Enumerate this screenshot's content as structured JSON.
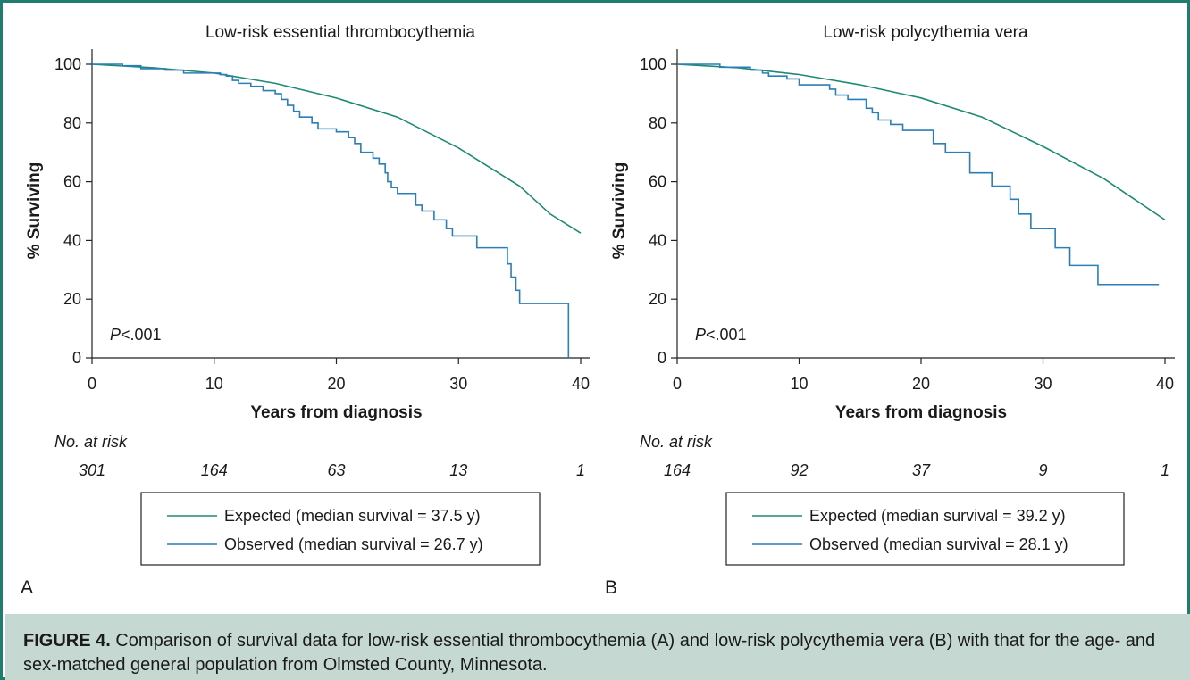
{
  "figure_label": "FIGURE 4.",
  "caption": "Comparison of survival data for low-risk essential thrombocythemia (A) and low-risk polycythemia vera (B) with that for the age- and sex-matched general population from Olmsted County, Minnesota.",
  "colors": {
    "expected": "#1e8a73",
    "observed": "#2a7fb8",
    "border": "#1e7d6c",
    "caption_bg": "#c6d8d2"
  },
  "chart_data": [
    {
      "type": "line",
      "panel": "A",
      "title": "Low-risk essential thrombocythemia",
      "xlabel": "Years from diagnosis",
      "ylabel": "% Surviving",
      "xlim": [
        0,
        40
      ],
      "ylim": [
        0,
        100
      ],
      "xticks": [
        0,
        10,
        20,
        30,
        40
      ],
      "yticks": [
        0,
        20,
        40,
        60,
        80,
        100
      ],
      "annotation_italic": "P",
      "annotation_rest": "<.001",
      "risk_label": "No. at risk",
      "risk_values": [
        "301",
        "164",
        "63",
        "13",
        "1"
      ],
      "series": [
        {
          "name": "Expected (median survival = 37.5 y)",
          "step": false,
          "points": [
            [
              0,
              100
            ],
            [
              5,
              98.8
            ],
            [
              10,
              97
            ],
            [
              15,
              93.5
            ],
            [
              20,
              88.5
            ],
            [
              25,
              82
            ],
            [
              30,
              71.5
            ],
            [
              35,
              58.5
            ],
            [
              37.5,
              49
            ],
            [
              40,
              42.5
            ]
          ]
        },
        {
          "name": "Observed (median survival = 26.7 y)",
          "step": true,
          "points": [
            [
              0,
              100
            ],
            [
              2.5,
              99.5
            ],
            [
              4,
              98.5
            ],
            [
              6,
              98
            ],
            [
              7.5,
              97
            ],
            [
              10.5,
              96.5
            ],
            [
              11,
              96
            ],
            [
              11.5,
              94.5
            ],
            [
              12,
              93.5
            ],
            [
              13,
              92.5
            ],
            [
              14,
              91
            ],
            [
              15,
              90
            ],
            [
              15.5,
              88
            ],
            [
              16,
              86
            ],
            [
              16.5,
              84
            ],
            [
              17,
              82
            ],
            [
              18,
              80
            ],
            [
              18.5,
              78
            ],
            [
              20,
              77
            ],
            [
              21,
              75
            ],
            [
              21.5,
              73
            ],
            [
              22,
              70
            ],
            [
              23,
              68
            ],
            [
              23.5,
              66
            ],
            [
              24,
              63
            ],
            [
              24.2,
              60
            ],
            [
              24.5,
              58
            ],
            [
              25,
              56
            ],
            [
              26.5,
              52
            ],
            [
              27,
              50
            ],
            [
              28,
              47
            ],
            [
              29,
              44
            ],
            [
              29.5,
              41.5
            ],
            [
              31.5,
              37.5
            ],
            [
              34,
              32
            ],
            [
              34.3,
              27.5
            ],
            [
              34.7,
              23
            ],
            [
              35,
              18.5
            ],
            [
              39,
              0
            ]
          ]
        }
      ]
    },
    {
      "type": "line",
      "panel": "B",
      "title": "Low-risk polycythemia vera",
      "xlabel": "Years from diagnosis",
      "ylabel": "% Surviving",
      "xlim": [
        0,
        40
      ],
      "ylim": [
        0,
        100
      ],
      "xticks": [
        0,
        10,
        20,
        30,
        40
      ],
      "yticks": [
        0,
        20,
        40,
        60,
        80,
        100
      ],
      "annotation_italic": "P",
      "annotation_rest": "<.001",
      "risk_label": "No. at risk",
      "risk_values": [
        "164",
        "92",
        "37",
        "9",
        "1"
      ],
      "series": [
        {
          "name": "Expected (median survival = 39.2 y)",
          "step": false,
          "points": [
            [
              0,
              100
            ],
            [
              5,
              98.8
            ],
            [
              10,
              96.5
            ],
            [
              15,
              93
            ],
            [
              20,
              88.5
            ],
            [
              25,
              82
            ],
            [
              30,
              72
            ],
            [
              35,
              61
            ],
            [
              40,
              47
            ]
          ]
        },
        {
          "name": "Observed (median survival = 28.1 y)",
          "step": true,
          "points": [
            [
              0,
              100
            ],
            [
              3.5,
              99
            ],
            [
              6,
              98
            ],
            [
              7,
              97
            ],
            [
              7.5,
              96
            ],
            [
              9,
              95
            ],
            [
              10,
              93
            ],
            [
              12.5,
              91.5
            ],
            [
              13,
              89.5
            ],
            [
              14,
              88
            ],
            [
              15.5,
              85
            ],
            [
              16,
              83.5
            ],
            [
              16.5,
              81
            ],
            [
              17.5,
              79.5
            ],
            [
              18.5,
              77.5
            ],
            [
              21,
              73
            ],
            [
              22,
              70
            ],
            [
              24,
              63
            ],
            [
              25.8,
              58.5
            ],
            [
              27.3,
              54
            ],
            [
              28,
              49
            ],
            [
              29,
              44
            ],
            [
              31,
              37.5
            ],
            [
              32.2,
              31.5
            ],
            [
              34.5,
              25
            ],
            [
              39.5,
              25
            ]
          ]
        }
      ]
    }
  ]
}
